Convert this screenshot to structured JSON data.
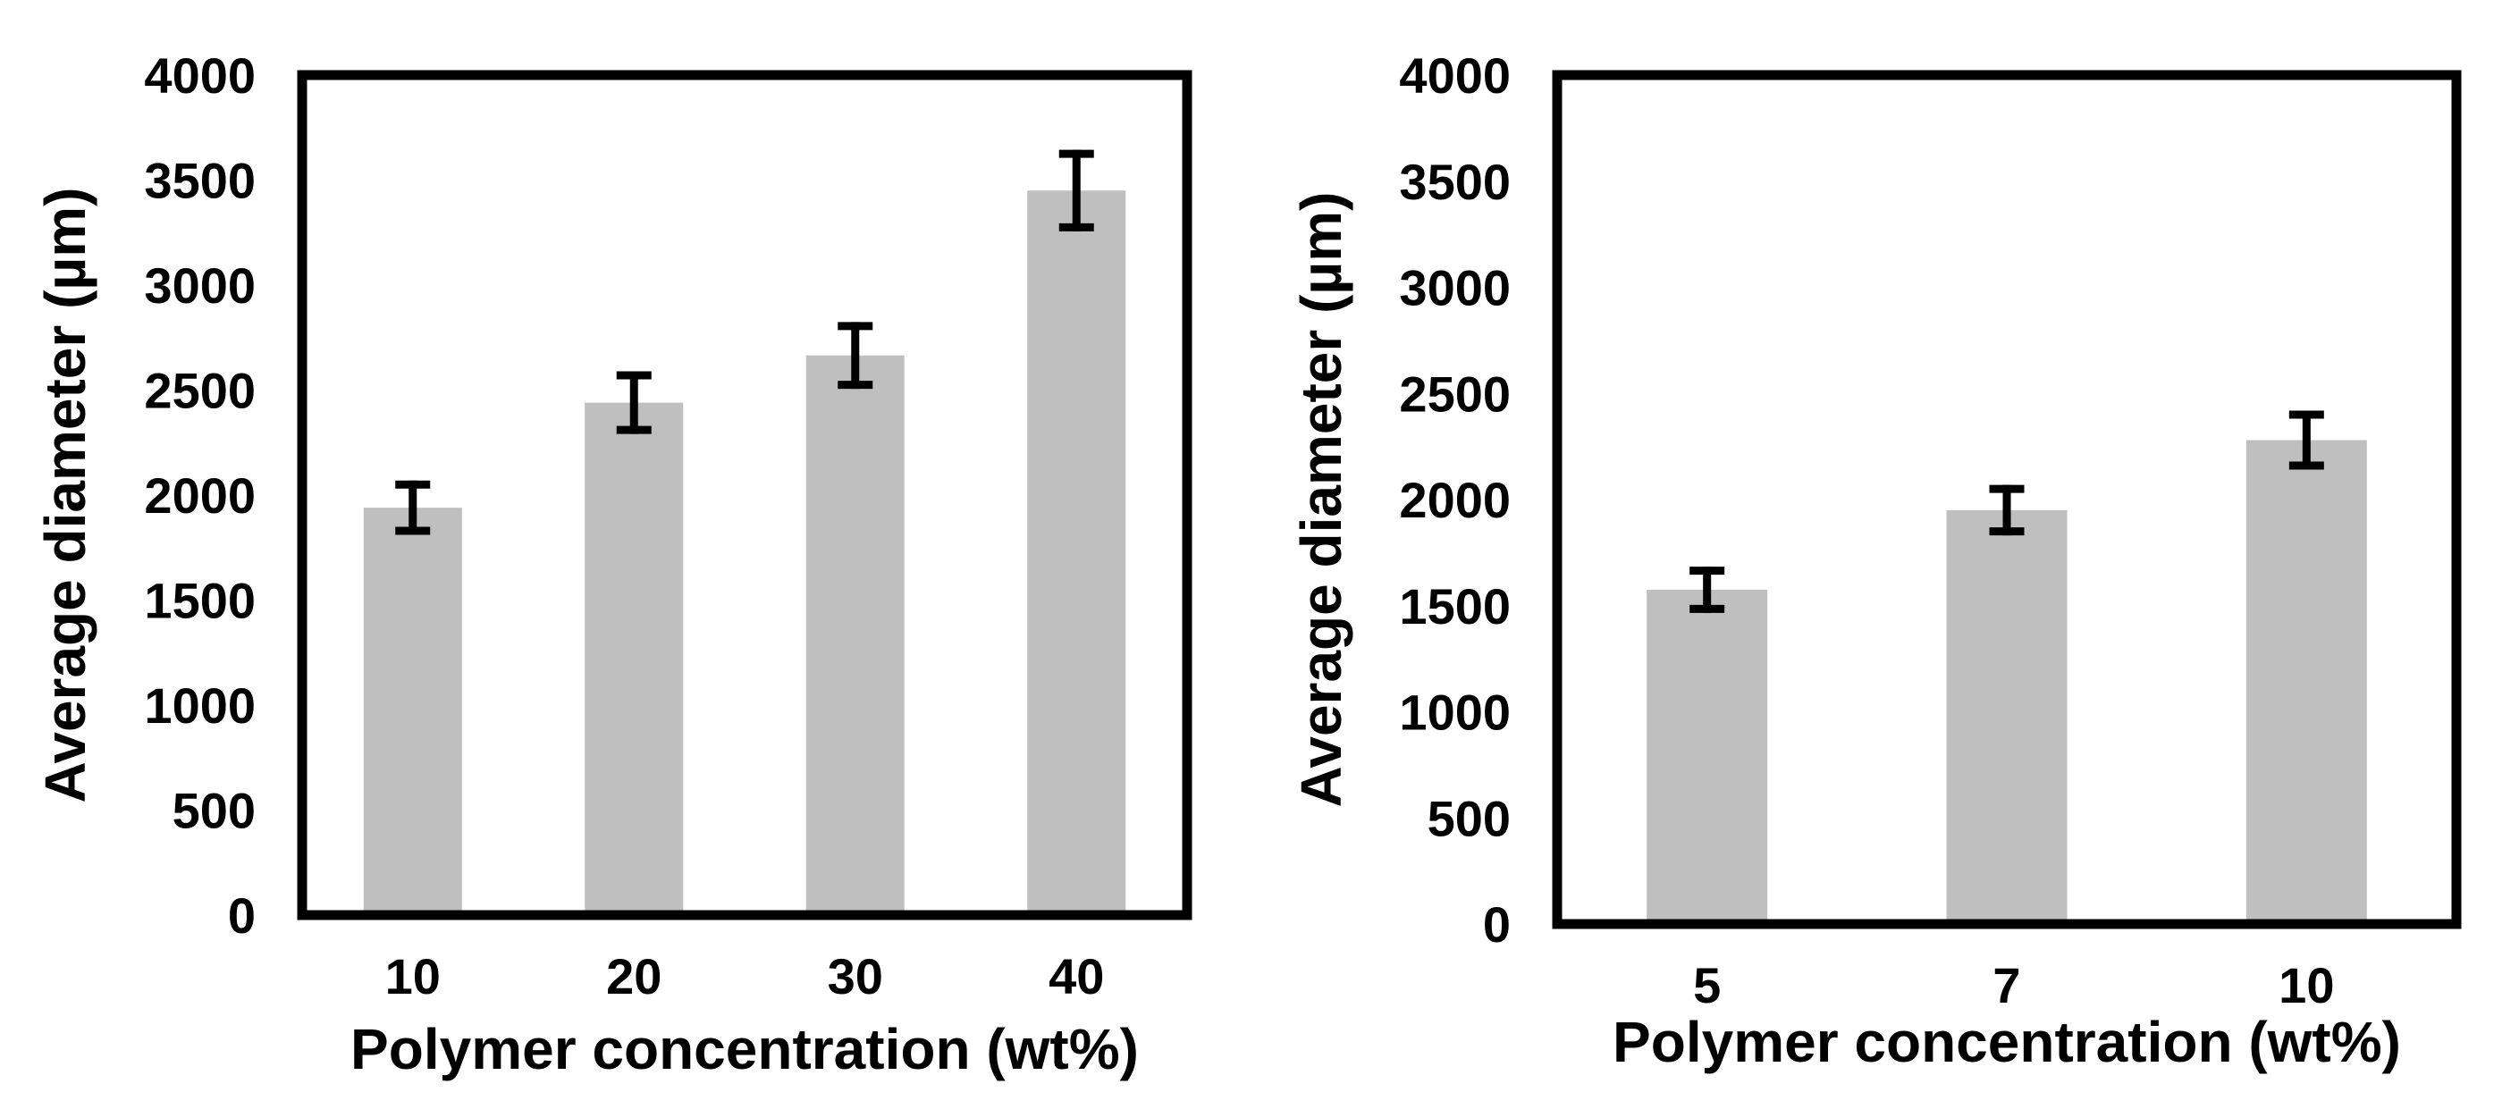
{
  "colors": {
    "bar": "#bfbfbf",
    "axis": "#000000",
    "error_bar": "#000000",
    "background": "#ffffff"
  },
  "chart_data": [
    {
      "type": "bar",
      "title": "",
      "xlabel": "Polymer concentration (wt%)",
      "ylabel": "Average diameter (µm)",
      "ylim": [
        0,
        4000
      ],
      "yticks": [
        "0",
        "500",
        "1000",
        "1500",
        "2000",
        "2500",
        "3000",
        "3500",
        "4000"
      ],
      "categories": [
        "10",
        "20",
        "30",
        "40"
      ],
      "values": [
        1940,
        2440,
        2665,
        3450
      ],
      "errors": [
        110,
        130,
        140,
        175
      ],
      "grid": false,
      "legend": "none"
    },
    {
      "type": "bar",
      "title": "",
      "xlabel": "Polymer  concentration (wt%)",
      "ylabel": "Average diameter (µm)",
      "ylim": [
        0,
        4000
      ],
      "yticks": [
        "0",
        "500",
        "1000",
        "1500",
        "2000",
        "2500",
        "3000",
        "3500",
        "4000"
      ],
      "categories": [
        "5",
        "7",
        "10"
      ],
      "values": [
        1575,
        1950,
        2280
      ],
      "errors": [
        90,
        100,
        120
      ],
      "grid": false,
      "legend": "none"
    }
  ]
}
